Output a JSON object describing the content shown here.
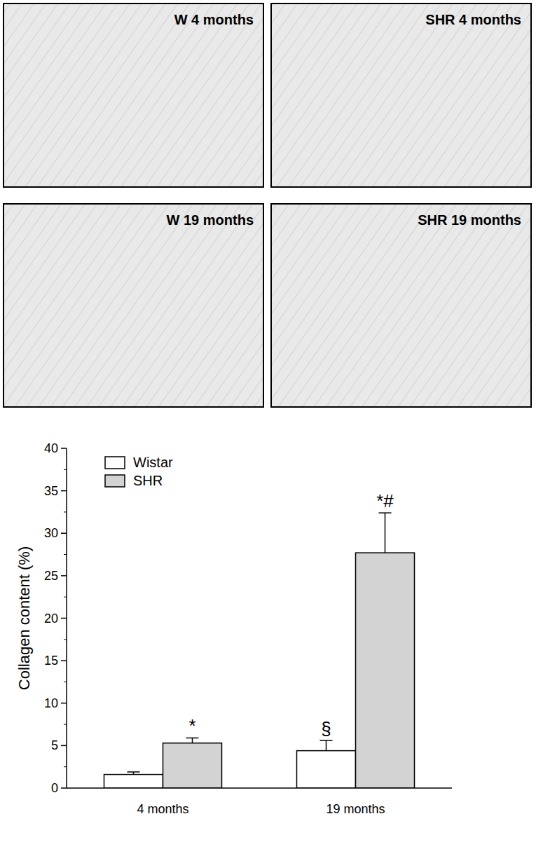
{
  "panels": [
    {
      "label": "W 4 months"
    },
    {
      "label": "SHR 4 months"
    },
    {
      "label": "W 19 months"
    },
    {
      "label": "SHR 19 months"
    }
  ],
  "chart_data": {
    "type": "bar",
    "categories": [
      "4 months",
      "19 months"
    ],
    "series": [
      {
        "name": "Wistar",
        "color": "#ffffff",
        "values": [
          1.6,
          4.4
        ],
        "errors": [
          0.3,
          1.2
        ],
        "significance": [
          null,
          "§"
        ]
      },
      {
        "name": "SHR",
        "color": "#d3d3d3",
        "values": [
          5.3,
          27.7
        ],
        "errors": [
          0.6,
          4.7
        ],
        "significance": [
          "*",
          "*#"
        ]
      }
    ],
    "ylabel": "Collagen content (%)",
    "ylim": [
      0,
      40
    ],
    "yticks": [
      0,
      5,
      10,
      15,
      20,
      25,
      30,
      35,
      40
    ],
    "grid": false,
    "legend": "upper left"
  }
}
